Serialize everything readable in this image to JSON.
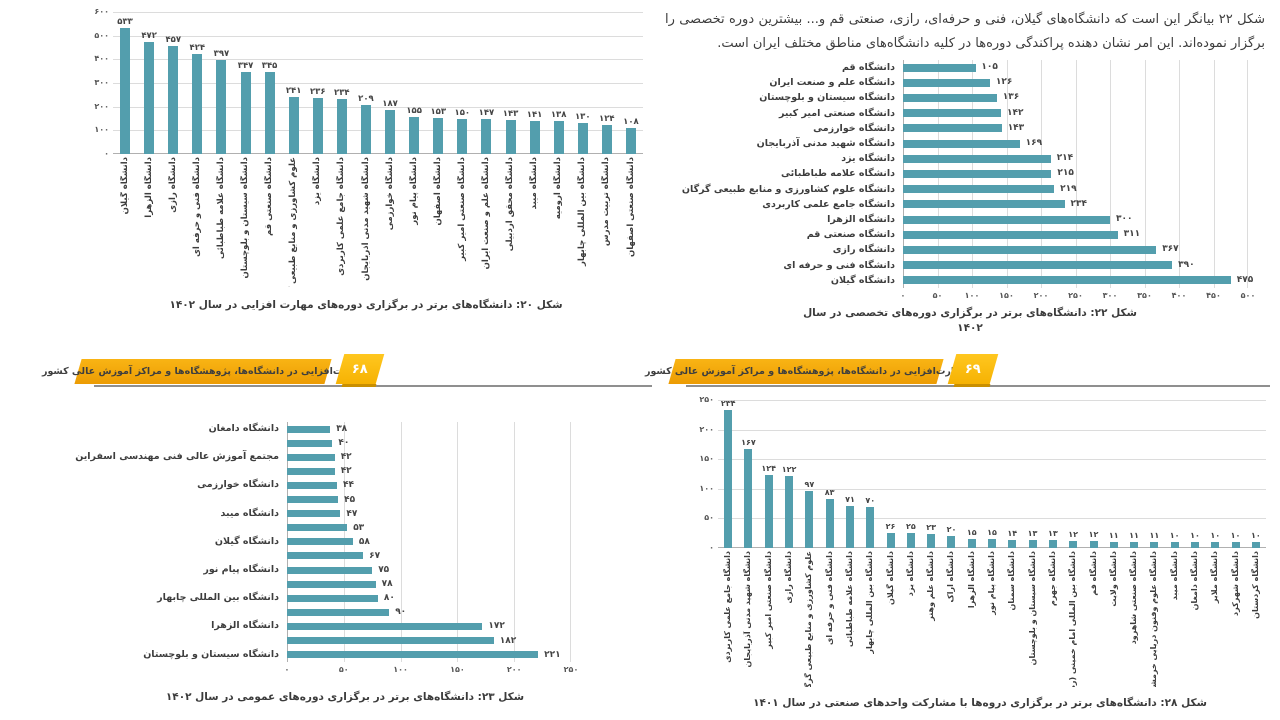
{
  "paragraph": "شکل ۲۲ بیانگر این است که دانشگاه‌های گیلان، فنی و حرفه‌ای، رازی، صنعتی قم و... بیشترین دوره تخصصی را برگزار نموده‌اند. این امر نشان دهنده پراکندگی دوره‌ها در کلیه دانشگاه‌های مناطق مختلف ایران است.",
  "banners": [
    {
      "text": "مهارت‌افزایی در دانشگاه‌ها، پژوهشگاه‌ها و مراکز آموزش عالی کشور",
      "number": "۶۸"
    },
    {
      "text": "مهارت‌افزایی در دانشگاه‌ها، پژوهشگاه‌ها و مراکز آموزش عالی کشور",
      "number": "۶۹"
    }
  ],
  "colors": {
    "bar_teal": "#539ead",
    "banner_gold_top": "#f9b414",
    "banner_gold_bottom": "#ec9c03",
    "page_number_yellow": "#ffc71f",
    "gridline": "#dcdcdc",
    "text_dark": "#3d3d3d"
  },
  "chart_data": [
    {
      "id": "fig20",
      "type": "bar",
      "orientation": "vertical",
      "caption": "شکل ۲۰: دانشگاه‌های برتر در برگزاری دوره‌های مهارت افزایی در سال ۱۴۰۲",
      "categories": [
        "دانشگاه گیلان",
        "دانشگاه الزهرا",
        "دانشگاه رازی",
        "دانشگاه فنی و حرفه ای",
        "دانشگاه علامه طباطبائی",
        "دانشگاه سیستان و بلوچستان",
        "دانشگاه صنعتی قم",
        "علوم کشاورزی و منابع طبیعی گرگان",
        "دانشگاه یزد",
        "دانشگاه جامع علمی کاربردی",
        "دانشگاه شهید مدنی آذربایجان",
        "دانشگاه خوارزمی",
        "دانشگاه پیام نور",
        "دانشگاه اصفهان",
        "دانشگاه صنعتی امیر کبیر",
        "دانشگاه علم و صنعت ایران",
        "دانشگاه محقق اردبیلی",
        "دانشگاه میبد",
        "دانشگاه ارومیه",
        "دانشگاه بین المللی چابهار",
        "دانشگاه تربیت مدرس",
        "دانشگاه صنعتی اصفهان"
      ],
      "values": [
        533,
        472,
        457,
        424,
        397,
        347,
        345,
        241,
        236,
        234,
        209,
        187,
        155,
        153,
        150,
        147,
        143,
        141,
        138,
        130,
        124,
        108
      ],
      "ylim": [
        0,
        600
      ],
      "ytick_step": 100,
      "grid": true
    },
    {
      "id": "fig22",
      "type": "bar",
      "orientation": "horizontal",
      "caption": "شکل ۲۲: دانشگاه‌های برتر در برگزاری دوره‌های  تخصصی در سال\n۱۴۰۲",
      "categories": [
        "دانشگاه قم",
        "دانشگاه علم و صنعت ایران",
        "دانشگاه سیستان و بلوچستان",
        "دانشگاه صنعتی امیر کبیر",
        "دانشگاه خوارزمی",
        "دانشگاه شهید مدنی آذربایجان",
        "دانشگاه یزد",
        "دانشگاه علامه طباطبائی",
        "دانشگاه علوم کشاورزی و منابع طبیعی گرگان",
        "دانشگاه جامع علمی کاربردی",
        "دانشگاه الزهرا",
        "دانشگاه صنعتی قم",
        "دانشگاه رازی",
        "دانشگاه فنی و حرفه ای",
        "دانشگاه گیلان"
      ],
      "values": [
        105,
        126,
        136,
        142,
        143,
        169,
        214,
        215,
        219,
        234,
        300,
        311,
        367,
        390,
        475
      ],
      "xlim": [
        0,
        500
      ],
      "xtick_step": 50,
      "grid": true
    },
    {
      "id": "fig23",
      "type": "bar",
      "orientation": "horizontal",
      "caption": "شکل ۲۳: دانشگاه‌های برتر در برگزاری دوره‌های عمومی در سال ۱۴۰۲",
      "categories": [
        "دانشگاه دامغان",
        "",
        "مجتمع آموزش عالی فنی مهندسی اسفراین",
        "",
        "دانشگاه خوارزمی",
        "",
        "دانشگاه میبد",
        "",
        "دانشگاه گیلان",
        "",
        "دانشگاه پیام نور",
        "",
        "دانشگاه بین المللی چابهار",
        "",
        "دانشگاه الزهرا",
        "",
        "دانشگاه سیستان و بلوچستان"
      ],
      "values": [
        38,
        40,
        42,
        42,
        44,
        45,
        47,
        53,
        58,
        67,
        75,
        78,
        80,
        90,
        172,
        182,
        221
      ],
      "xlim": [
        0,
        250
      ],
      "xtick_step": 50,
      "grid": true
    },
    {
      "id": "fig28",
      "type": "bar",
      "orientation": "vertical",
      "caption": "شکل ۲۸: دانشگاه‌های برتر در برگزاری دروه‌ها با مشارکت واحدهای صنعتی در سال ۱۴۰۱",
      "categories": [
        "دانشگاه جامع علمی کاربردی",
        "دانشگاه شهید مدنی آذربایجان",
        "دانشگاه صنعتی امیر کبیر",
        "دانشگاه رازی",
        "علوم کشاورزی و منابع طبیعی گرگان",
        "دانشگاه فنی و حرفه ای",
        "دانشگاه علامه طباطبائی",
        "دانشگاه بین المللی چابهار",
        "دانشگاه گیلان",
        "دانشگاه یزد",
        "دانشگاه علم وهنر",
        "دانشگاه اراک",
        "دانشگاه الزهرا",
        "دانشگاه پیام نور",
        "دانشگاه سمنان",
        "دانشگاه سیستان و بلوچستان",
        "دانشگاه جهرم",
        "دانشگاه بین المللی امام خمینی (ره)",
        "دانشگاه قم",
        "دانشگاه ولایت",
        "دانشگاه صنعتی شاهرود",
        "دانشگاه علوم وفنون دریایی خرمشهر",
        "دانشگاه میبد",
        "دانشگاه دامغان",
        "دانشگاه ملایر",
        "دانشگاه شهرکرد",
        "دانشگاه کردستان"
      ],
      "values": [
        234,
        167,
        124,
        122,
        97,
        83,
        71,
        70,
        26,
        25,
        23,
        20,
        15,
        15,
        14,
        13,
        13,
        12,
        12,
        11,
        11,
        11,
        10,
        10,
        10,
        10,
        10
      ],
      "ylim": [
        0,
        250
      ],
      "ytick_step": 50,
      "grid": true
    }
  ]
}
